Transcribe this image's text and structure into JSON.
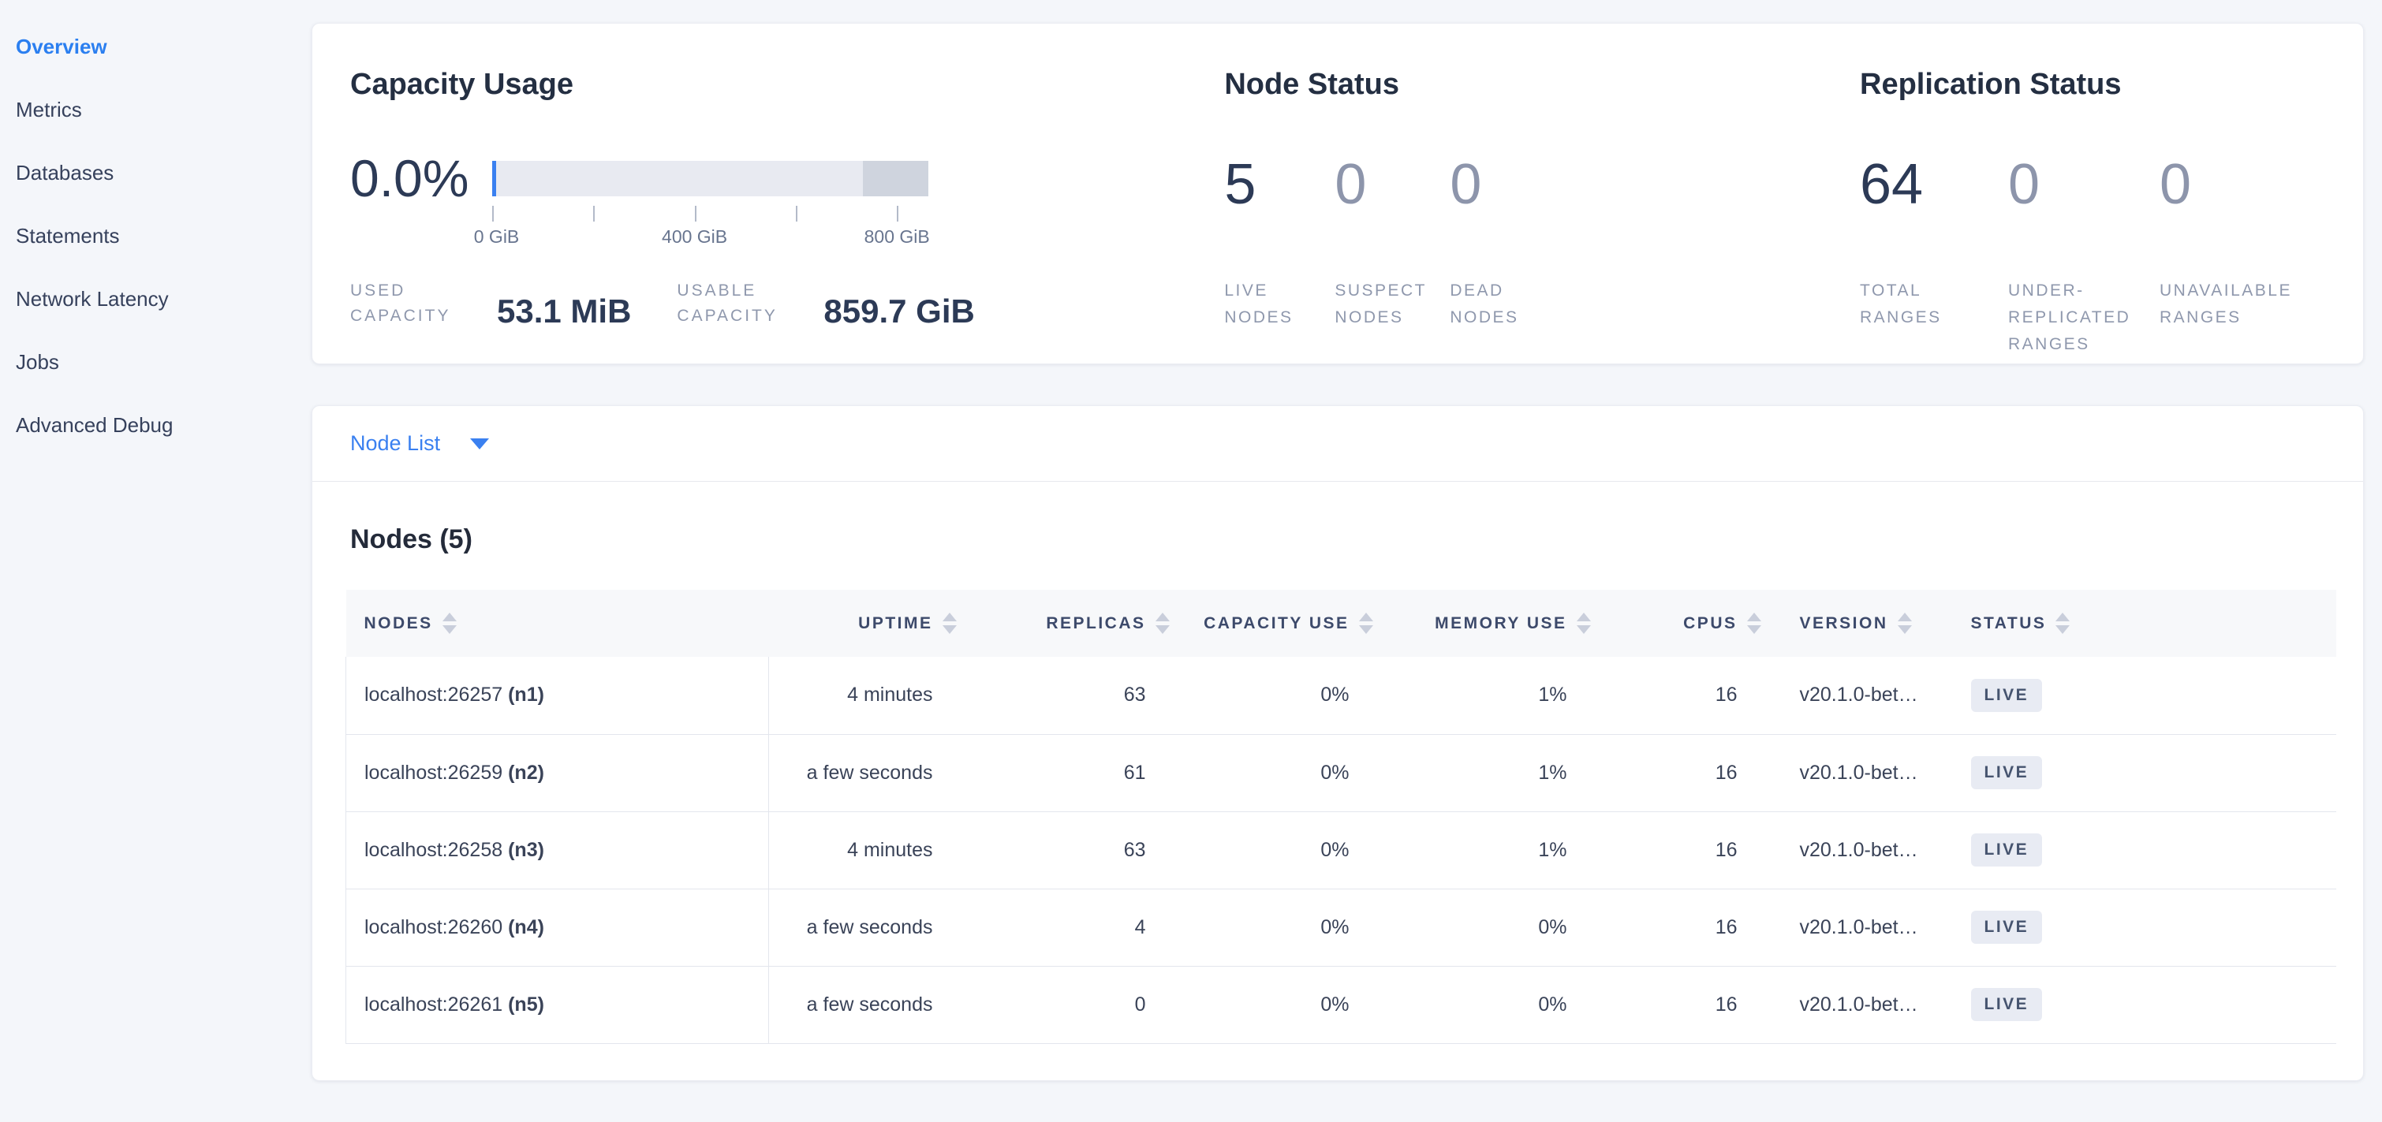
{
  "sidebar": {
    "items": [
      {
        "label": "Overview",
        "active": true
      },
      {
        "label": "Metrics"
      },
      {
        "label": "Databases"
      },
      {
        "label": "Statements"
      },
      {
        "label": "Network Latency"
      },
      {
        "label": "Jobs"
      },
      {
        "label": "Advanced Debug"
      }
    ]
  },
  "capacity": {
    "title": "Capacity Usage",
    "percent": "0.0%",
    "axis_labels": [
      "0 GiB",
      "400 GiB",
      "800 GiB"
    ],
    "used_label": "USED CAPACITY",
    "used_value": "53.1 MiB",
    "usable_label": "USABLE CAPACITY",
    "usable_value": "859.7 GiB",
    "accent_color": "#3a80f0",
    "track_color": "#e8eaf1",
    "unusable_color": "#cfd4de"
  },
  "node_status": {
    "title": "Node Status",
    "metrics": [
      {
        "value": "5",
        "label": "LIVE NODES"
      },
      {
        "value": "0",
        "label": "SUSPECT NODES"
      },
      {
        "value": "0",
        "label": "DEAD NODES"
      }
    ]
  },
  "replication": {
    "title": "Replication Status",
    "metrics": [
      {
        "value": "64",
        "label": "TOTAL RANGES"
      },
      {
        "value": "0",
        "label": "UNDER-REPLICATED RANGES"
      },
      {
        "value": "0",
        "label": "UNAVAILABLE RANGES"
      }
    ]
  },
  "node_list": {
    "dropdown_label": "Node List"
  },
  "nodes_table": {
    "title": "Nodes (5)",
    "columns": [
      "NODES",
      "UPTIME",
      "REPLICAS",
      "CAPACITY USE",
      "MEMORY USE",
      "CPUS",
      "VERSION",
      "STATUS"
    ],
    "rows": [
      {
        "address": "localhost:26257",
        "id": "(n1)",
        "uptime": "4 minutes",
        "replicas": "63",
        "capacity_use": "0%",
        "memory_use": "1%",
        "cpus": "16",
        "version": "v20.1.0-bet…",
        "status": "LIVE"
      },
      {
        "address": "localhost:26259",
        "id": "(n2)",
        "uptime": "a few seconds",
        "replicas": "61",
        "capacity_use": "0%",
        "memory_use": "1%",
        "cpus": "16",
        "version": "v20.1.0-bet…",
        "status": "LIVE"
      },
      {
        "address": "localhost:26258",
        "id": "(n3)",
        "uptime": "4 minutes",
        "replicas": "63",
        "capacity_use": "0%",
        "memory_use": "1%",
        "cpus": "16",
        "version": "v20.1.0-bet…",
        "status": "LIVE"
      },
      {
        "address": "localhost:26260",
        "id": "(n4)",
        "uptime": "a few seconds",
        "replicas": "4",
        "capacity_use": "0%",
        "memory_use": "0%",
        "cpus": "16",
        "version": "v20.1.0-bet…",
        "status": "LIVE"
      },
      {
        "address": "localhost:26261",
        "id": "(n5)",
        "uptime": "a few seconds",
        "replicas": "0",
        "capacity_use": "0%",
        "memory_use": "0%",
        "cpus": "16",
        "version": "v20.1.0-bet…",
        "status": "LIVE"
      }
    ]
  }
}
